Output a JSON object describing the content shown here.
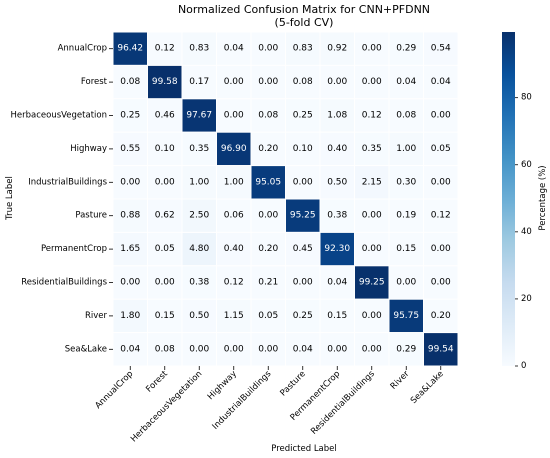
{
  "chart_data": {
    "type": "heatmap",
    "title_line1": "Normalized Confusion Matrix for CNN+PFDNN",
    "title_line2": "(5-fold CV)",
    "xlabel": "Predicted Label",
    "ylabel": "True Label",
    "colorbar_label": "Percentage (%)",
    "colorbar_ticks": [
      0,
      20,
      40,
      60,
      80
    ],
    "vmin": 0,
    "vmax": 99.58,
    "colormap": "Blues",
    "rows": [
      "AnnualCrop",
      "Forest",
      "HerbaceousVegetation",
      "Highway",
      "IndustrialBuildings",
      "Pasture",
      "PermanentCrop",
      "ResidentialBuildings",
      "River",
      "Sea&Lake"
    ],
    "columns": [
      "AnnualCrop",
      "Forest",
      "HerbaceousVegetation",
      "Highway",
      "IndustrialBuildings",
      "Pasture",
      "PermanentCrop",
      "ResidentialBuildings",
      "River",
      "Sea&Lake"
    ],
    "values": [
      [
        "96.42",
        "0.12",
        "0.83",
        "0.04",
        "0.00",
        "0.83",
        "0.92",
        "0.00",
        "0.29",
        "0.54"
      ],
      [
        "0.08",
        "99.58",
        "0.17",
        "0.00",
        "0.00",
        "0.08",
        "0.00",
        "0.00",
        "0.04",
        "0.04"
      ],
      [
        "0.25",
        "0.46",
        "97.67",
        "0.00",
        "0.08",
        "0.25",
        "1.08",
        "0.12",
        "0.08",
        "0.00"
      ],
      [
        "0.55",
        "0.10",
        "0.35",
        "96.90",
        "0.20",
        "0.10",
        "0.40",
        "0.35",
        "1.00",
        "0.05"
      ],
      [
        "0.00",
        "0.00",
        "1.00",
        "1.00",
        "95.05",
        "0.00",
        "0.50",
        "2.15",
        "0.30",
        "0.00"
      ],
      [
        "0.88",
        "0.62",
        "2.50",
        "0.06",
        "0.00",
        "95.25",
        "0.38",
        "0.00",
        "0.19",
        "0.12"
      ],
      [
        "1.65",
        "0.05",
        "4.80",
        "0.40",
        "0.20",
        "0.45",
        "92.30",
        "0.00",
        "0.15",
        "0.00"
      ],
      [
        "0.00",
        "0.00",
        "0.38",
        "0.12",
        "0.21",
        "0.00",
        "0.04",
        "99.25",
        "0.00",
        "0.00"
      ],
      [
        "1.80",
        "0.15",
        "0.50",
        "1.15",
        "0.05",
        "0.25",
        "0.15",
        "0.00",
        "95.75",
        "0.20"
      ],
      [
        "0.04",
        "0.08",
        "0.00",
        "0.00",
        "0.00",
        "0.04",
        "0.00",
        "0.00",
        "0.29",
        "99.54"
      ]
    ]
  }
}
